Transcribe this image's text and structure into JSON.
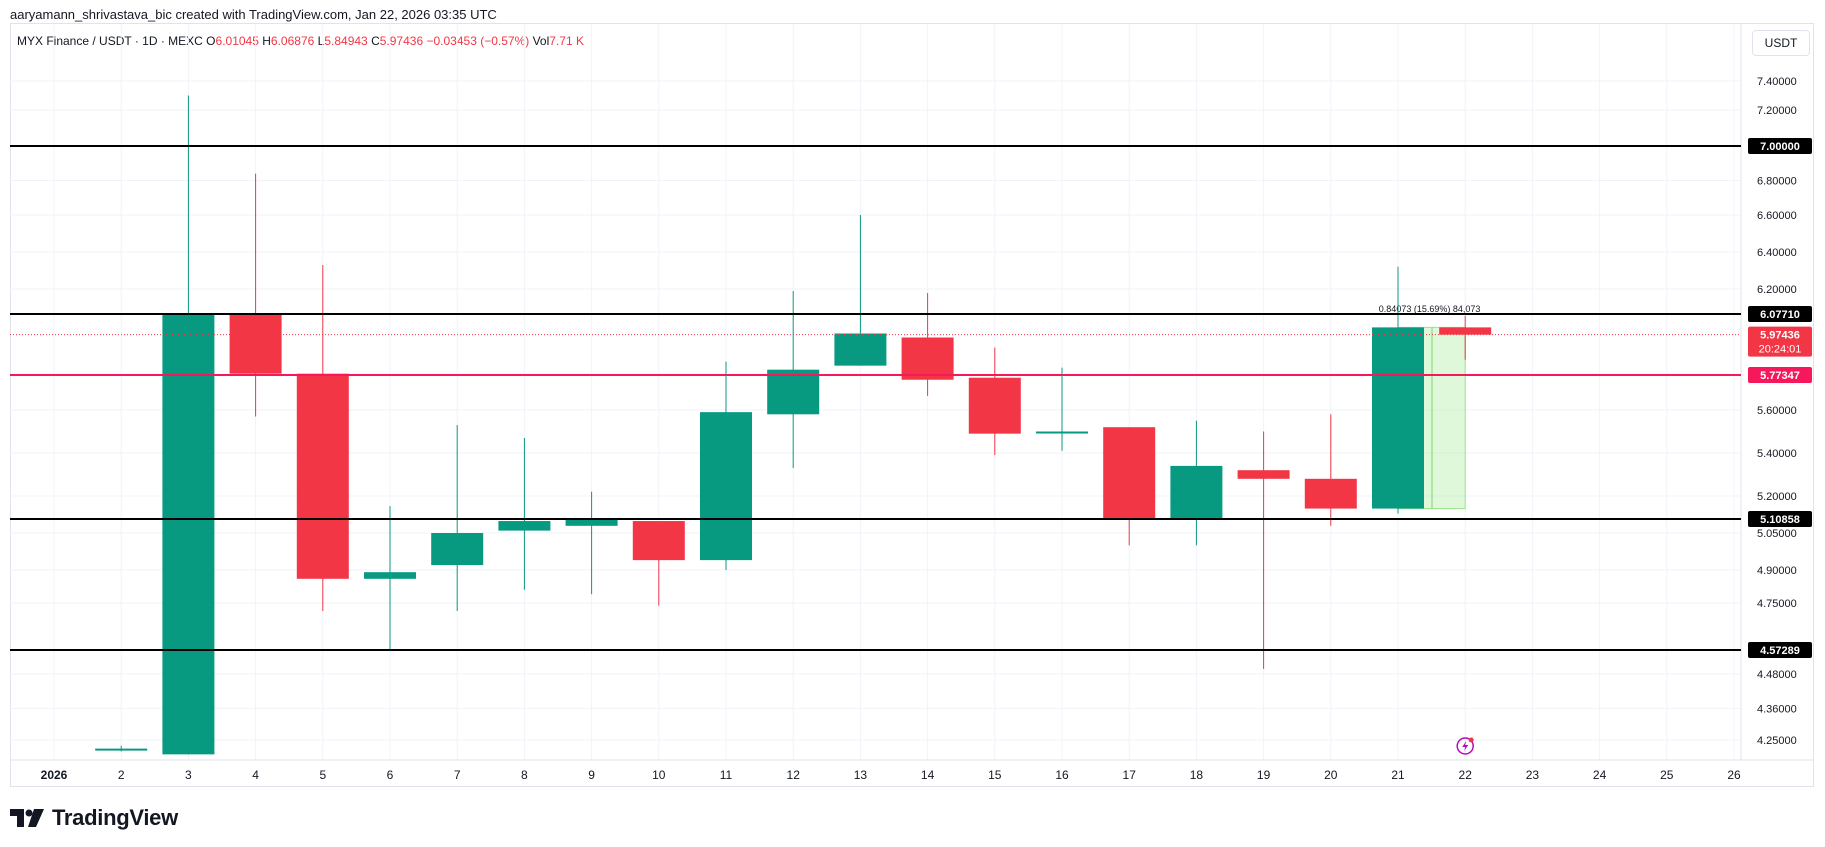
{
  "header": {
    "attribution": "aaryamann_shrivastava_bic created with TradingView.com, Jan 22, 2026 03:35 UTC"
  },
  "legend": {
    "symbol": "MYX Finance / USDT · 1D · MEXC",
    "open_label": "O",
    "open": "6.01045",
    "high_label": "H",
    "high": "6.06876",
    "low_label": "L",
    "low": "5.84943",
    "close_label": "C",
    "close": "5.97436",
    "change": "−0.03453 (−0.57%)",
    "vol_label": "Vol",
    "vol": "7.71 K"
  },
  "currency": "USDT",
  "logo_text": "TradingView",
  "chart_data": {
    "type": "candlestick",
    "x_categories": [
      "2026",
      "2",
      "3",
      "4",
      "5",
      "6",
      "7",
      "8",
      "9",
      "10",
      "11",
      "12",
      "13",
      "14",
      "15",
      "16",
      "17",
      "18",
      "19",
      "20",
      "21",
      "22",
      "23",
      "24",
      "25",
      "26"
    ],
    "y_ticks": [
      "7.40000",
      "7.20000",
      "6.80000",
      "6.60000",
      "6.40000",
      "6.20000",
      "5.60000",
      "5.40000",
      "5.20000",
      "5.05000",
      "4.90000",
      "4.75000",
      "4.48000",
      "4.36000",
      "4.25000"
    ],
    "y_tick_values": [
      7.4,
      7.2,
      6.8,
      6.6,
      6.4,
      6.2,
      5.6,
      5.4,
      5.2,
      5.05,
      4.9,
      4.75,
      4.48,
      4.36,
      4.25
    ],
    "candles": [
      {
        "day": "2",
        "open": 4.22,
        "high": 4.23,
        "low": 4.21,
        "close": 4.22
      },
      {
        "day": "3",
        "open": 4.2,
        "high": 7.3,
        "low": 4.2,
        "close": 6.0771
      },
      {
        "day": "4",
        "open": 6.0771,
        "high": 6.84,
        "low": 5.57,
        "close": 5.78
      },
      {
        "day": "5",
        "open": 5.78,
        "high": 6.33,
        "low": 4.72,
        "close": 4.86
      },
      {
        "day": "6",
        "open": 4.86,
        "high": 5.16,
        "low": 4.57,
        "close": 4.89
      },
      {
        "day": "7",
        "open": 4.92,
        "high": 5.53,
        "low": 4.72,
        "close": 5.05
      },
      {
        "day": "8",
        "open": 5.06,
        "high": 5.47,
        "low": 4.81,
        "close": 5.1
      },
      {
        "day": "9",
        "open": 5.08,
        "high": 5.22,
        "low": 4.79,
        "close": 5.11
      },
      {
        "day": "10",
        "open": 5.1,
        "high": 5.1,
        "low": 4.74,
        "close": 4.94
      },
      {
        "day": "11",
        "open": 4.94,
        "high": 5.84,
        "low": 4.9,
        "close": 5.59
      },
      {
        "day": "12",
        "open": 5.58,
        "high": 6.19,
        "low": 5.33,
        "close": 5.8
      },
      {
        "day": "13",
        "open": 5.82,
        "high": 6.6,
        "low": 5.82,
        "close": 5.98
      },
      {
        "day": "14",
        "open": 5.96,
        "high": 6.18,
        "low": 5.67,
        "close": 5.75
      },
      {
        "day": "15",
        "open": 5.76,
        "high": 5.91,
        "low": 5.39,
        "close": 5.49
      },
      {
        "day": "16",
        "open": 5.5,
        "high": 5.81,
        "low": 5.41,
        "close": 5.5
      },
      {
        "day": "17",
        "open": 5.52,
        "high": 5.52,
        "low": 5.0,
        "close": 5.11
      },
      {
        "day": "18",
        "open": 5.11,
        "high": 5.55,
        "low": 5.0,
        "close": 5.34
      },
      {
        "day": "19",
        "open": 5.32,
        "high": 5.5,
        "low": 4.5,
        "close": 5.28
      },
      {
        "day": "20",
        "open": 5.28,
        "high": 5.58,
        "low": 5.08,
        "close": 5.15
      },
      {
        "day": "21",
        "open": 5.15,
        "high": 6.32,
        "low": 5.13,
        "close": 6.01045
      },
      {
        "day": "22",
        "open": 6.01045,
        "high": 6.06876,
        "low": 5.84943,
        "close": 5.97436
      }
    ],
    "horizontal_lines": [
      {
        "value": 7.0,
        "label": "7.00000",
        "color": "#000000"
      },
      {
        "value": 6.0771,
        "label": "6.07710",
        "color": "#000000"
      },
      {
        "value": 5.77347,
        "label": "5.77347",
        "color": "#f7185c"
      },
      {
        "value": 5.10858,
        "label": "5.10858",
        "color": "#000000"
      },
      {
        "value": 4.57289,
        "label": "4.57289",
        "color": "#000000"
      }
    ],
    "last_price": {
      "value": 5.97436,
      "label": "5.97436",
      "countdown": "20:24:01"
    },
    "measure_annotation": "0.84073 (15.69%) 84,073",
    "colors": {
      "up": "#089981",
      "down": "#f23645",
      "grid": "#f0f3fa"
    }
  }
}
